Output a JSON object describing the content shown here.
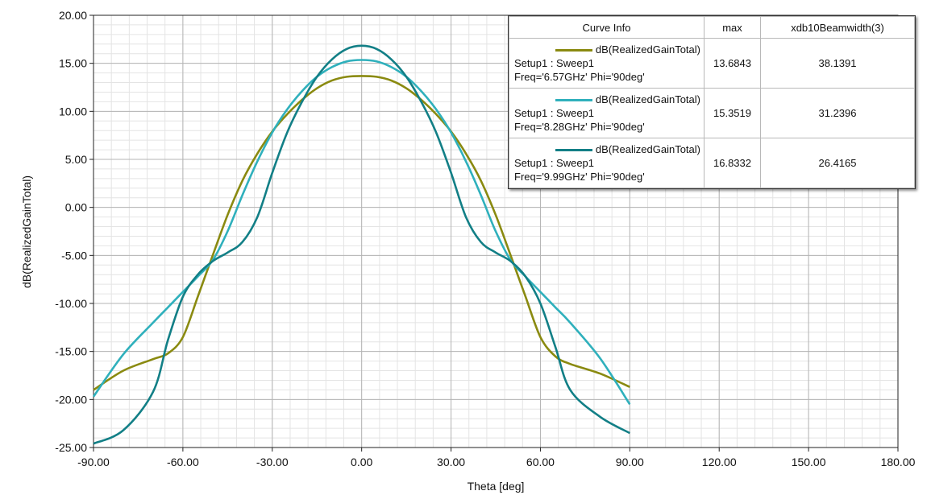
{
  "chart_data": {
    "type": "line",
    "title": "",
    "xlabel": "Theta [deg]",
    "ylabel": "dB(RealizedGainTotal)",
    "xlim": [
      -90,
      180
    ],
    "ylim": [
      -25,
      20
    ],
    "grid": true,
    "legend_placement": "top-right",
    "x_ticks": [
      "-90.00",
      "-60.00",
      "-30.00",
      "0.00",
      "30.00",
      "60.00",
      "90.00",
      "120.00",
      "150.00",
      "180.00"
    ],
    "y_ticks": [
      "20.00",
      "15.00",
      "10.00",
      "5.00",
      "0.00",
      "-5.00",
      "-10.00",
      "-15.00",
      "-20.00",
      "-25.00"
    ],
    "x_tick_values": [
      -90,
      -60,
      -30,
      0,
      30,
      60,
      90,
      120,
      150,
      180
    ],
    "y_tick_values": [
      20,
      15,
      10,
      5,
      0,
      -5,
      -10,
      -15,
      -20,
      -25
    ],
    "x": [
      -90,
      -80,
      -70,
      -65,
      -60,
      -55,
      -50,
      -45,
      -40,
      -35,
      -30,
      -25,
      -20,
      -15,
      -10,
      -5,
      0,
      5,
      10,
      15,
      20,
      25,
      30,
      35,
      40,
      45,
      50,
      55,
      60,
      65,
      70,
      80,
      90
    ],
    "series": [
      {
        "name": "dB(RealizedGainTotal)",
        "color": "#8a8a10",
        "values": [
          -19.0,
          -17.0,
          -15.8,
          -15.2,
          -13.5,
          -9.3,
          -5.0,
          -0.8,
          2.8,
          5.6,
          7.9,
          9.7,
          11.2,
          12.4,
          13.2,
          13.6,
          13.68,
          13.6,
          13.2,
          12.4,
          11.2,
          9.7,
          7.9,
          5.6,
          2.8,
          -0.8,
          -5.0,
          -9.3,
          -13.5,
          -15.5,
          -16.3,
          -17.3,
          -18.7
        ]
      },
      {
        "name": "dB(RealizedGainTotal)",
        "color": "#2fb0bc",
        "values": [
          -19.7,
          -15.3,
          -12.0,
          -10.4,
          -8.8,
          -7.2,
          -5.5,
          -2.5,
          1.3,
          4.8,
          7.8,
          10.2,
          12.1,
          13.6,
          14.6,
          15.2,
          15.35,
          15.2,
          14.6,
          13.6,
          12.1,
          10.2,
          7.8,
          4.8,
          1.3,
          -2.5,
          -5.5,
          -7.2,
          -8.8,
          -10.4,
          -12.0,
          -15.7,
          -20.5
        ]
      },
      {
        "name": "dB(RealizedGainTotal)",
        "color": "#127f86",
        "values": [
          -24.6,
          -23.2,
          -19.2,
          -13.8,
          -9.3,
          -7.0,
          -5.6,
          -4.7,
          -3.6,
          -1.0,
          3.6,
          7.8,
          11.0,
          13.6,
          15.4,
          16.5,
          16.83,
          16.5,
          15.4,
          13.6,
          11.0,
          7.8,
          3.6,
          -1.0,
          -3.6,
          -4.7,
          -5.6,
          -7.2,
          -10.0,
          -14.5,
          -19.0,
          -21.8,
          -23.5
        ]
      }
    ]
  },
  "legend": {
    "headers": [
      "Curve Info",
      "max",
      "xdb10Beamwidth(3)"
    ],
    "rows": [
      {
        "line1": "dB(RealizedGainTotal)",
        "line2": "Setup1 : Sweep1",
        "line3": "Freq='6.57GHz' Phi='90deg'",
        "max": "13.6843",
        "beamwidth": "38.1391"
      },
      {
        "line1": "dB(RealizedGainTotal)",
        "line2": "Setup1 : Sweep1",
        "line3": "Freq='8.28GHz' Phi='90deg'",
        "max": "15.3519",
        "beamwidth": "31.2396"
      },
      {
        "line1": "dB(RealizedGainTotal)",
        "line2": "Setup1 : Sweep1",
        "line3": "Freq='9.99GHz' Phi='90deg'",
        "max": "16.8332",
        "beamwidth": "26.4165"
      }
    ]
  }
}
